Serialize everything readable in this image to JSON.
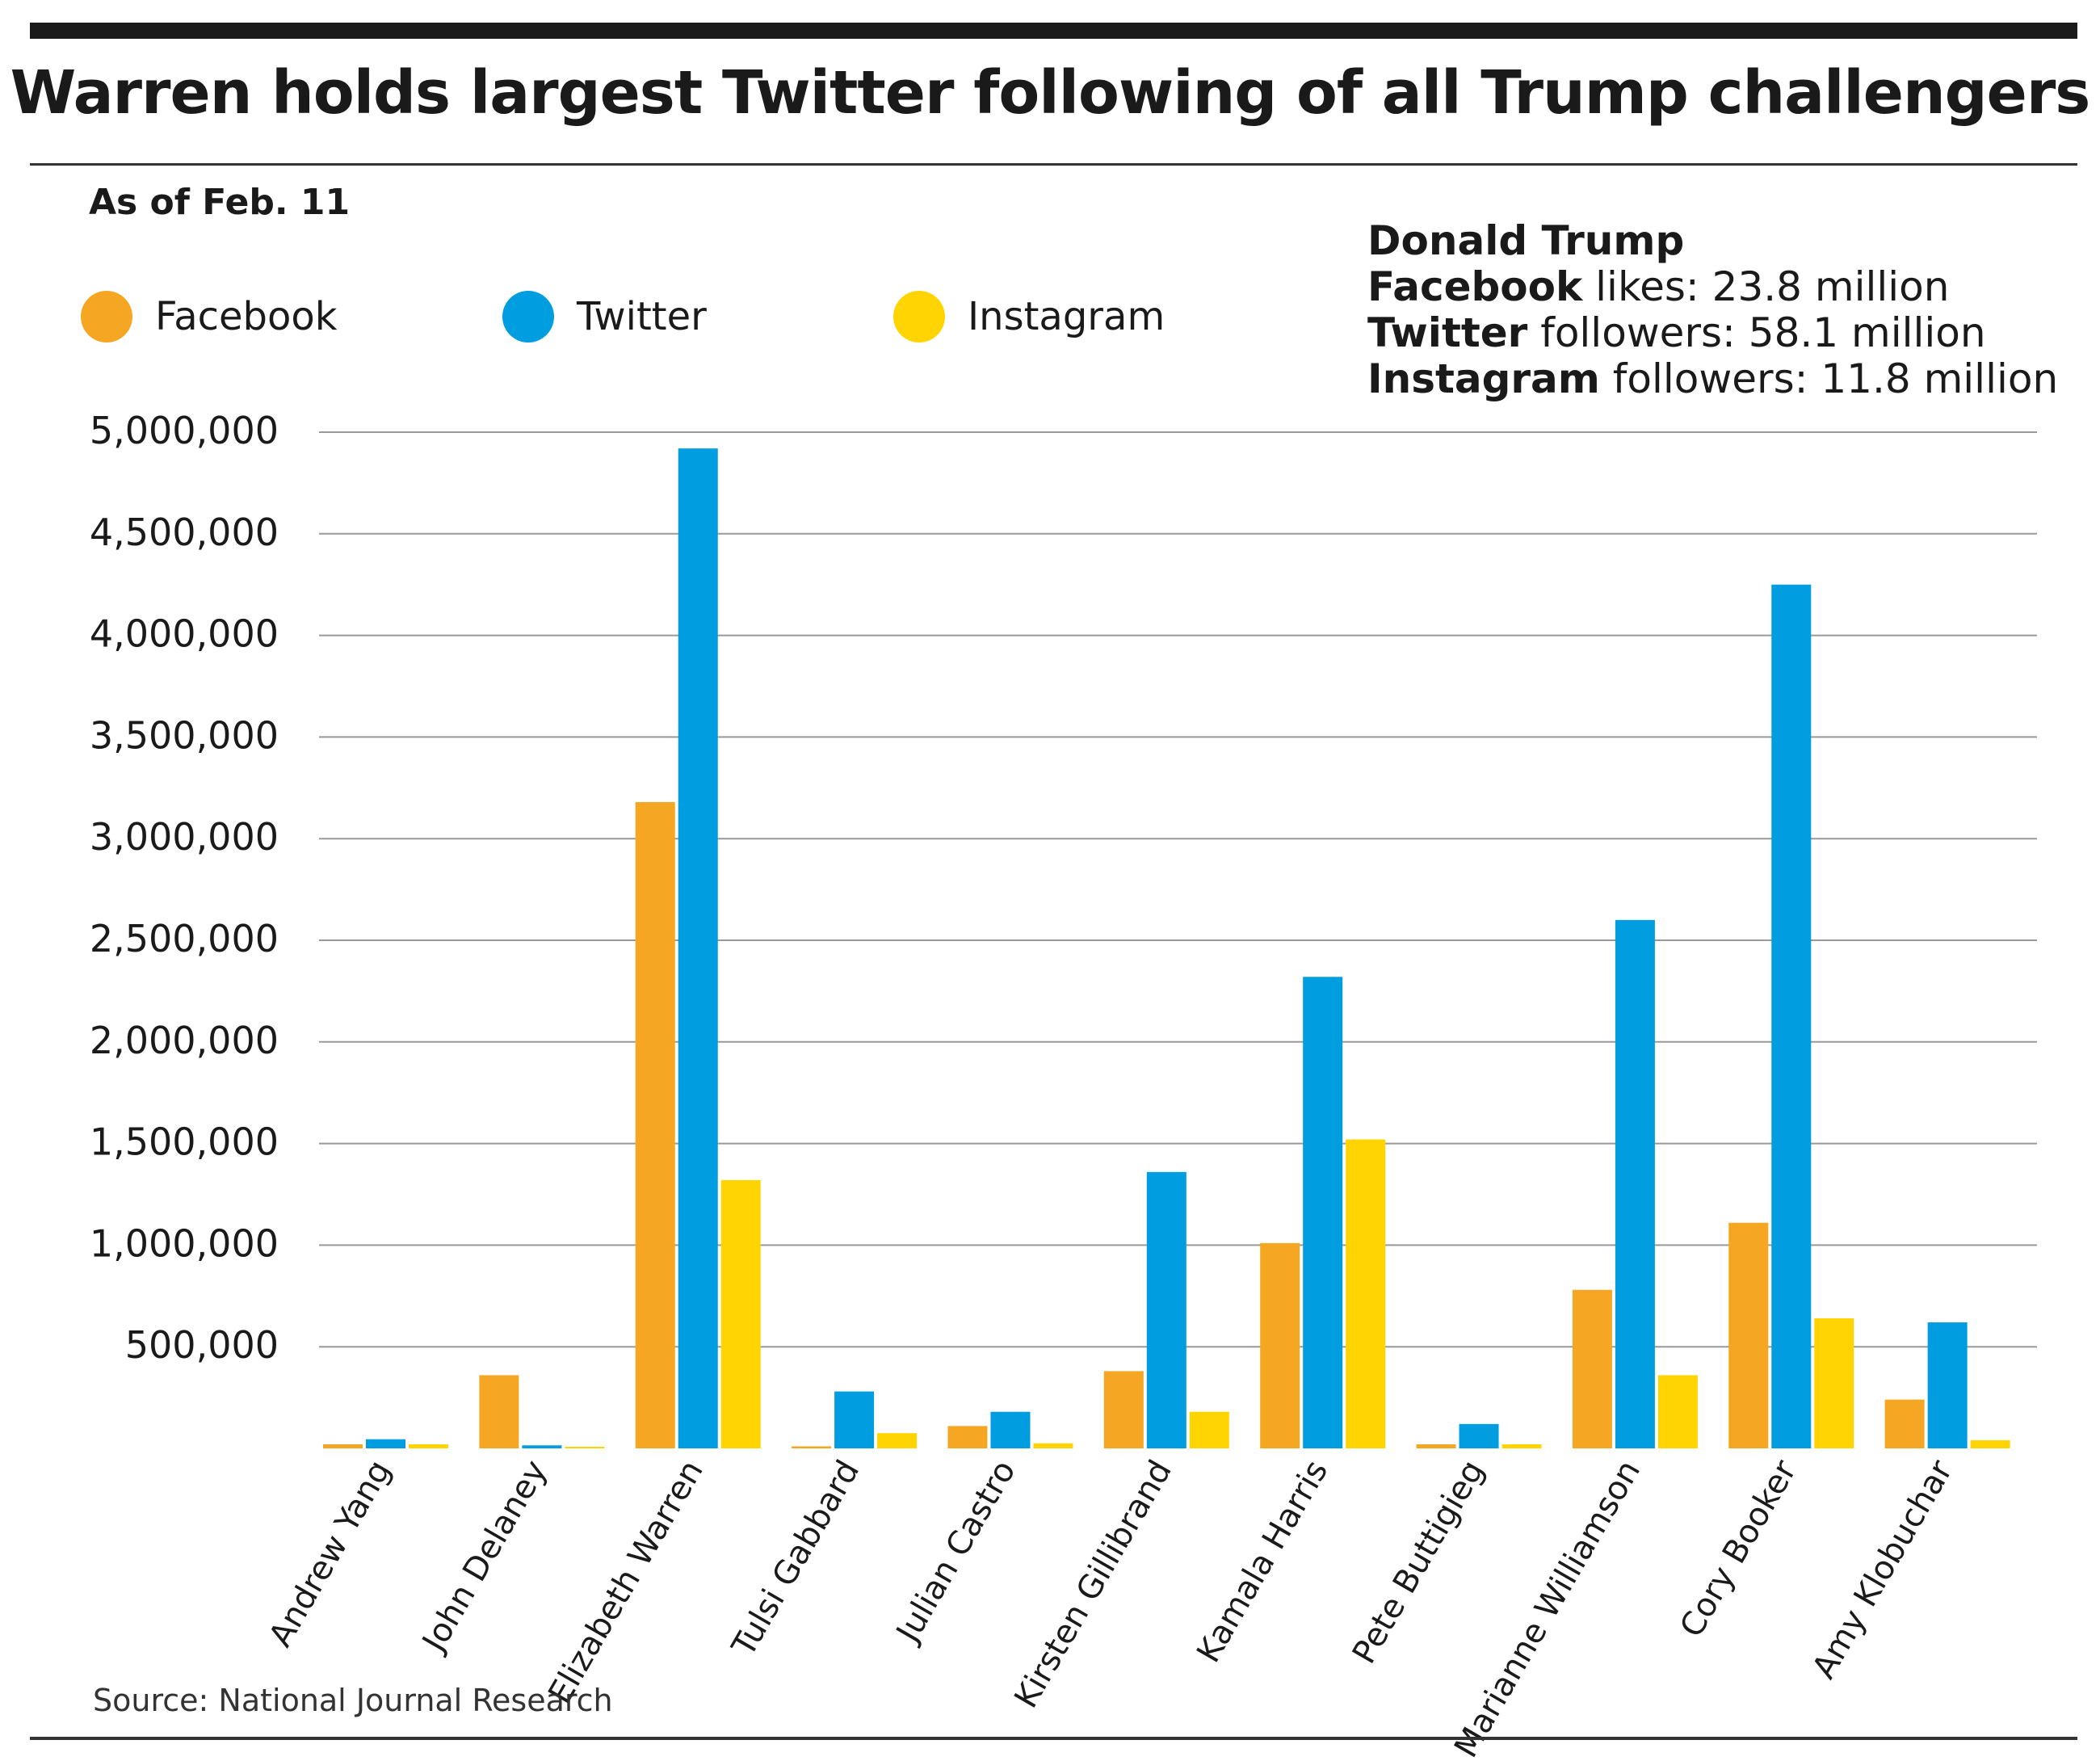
{
  "title": "Warren holds largest Twitter following of all Trump challengers",
  "subtitle": "As of Feb. 11",
  "source": "Source: National Journal Research",
  "trump_box": {
    "heading": "Donald Trump",
    "lines": [
      {
        "bold": "Facebook",
        "rest": " likes: 23.8 million"
      },
      {
        "bold": "Twitter",
        "rest": " followers: 58.1 million"
      },
      {
        "bold": "Instagram",
        "rest": " followers: 11.8 million"
      }
    ]
  },
  "colors": {
    "Facebook": "#f5a623",
    "Twitter": "#009ee0",
    "Instagram": "#ffd400",
    "grid": "#999999"
  },
  "chart_data": {
    "type": "bar",
    "title": "Warren holds largest Twitter following of all Trump challengers",
    "subtitle": "As of Feb. 11",
    "xlabel": "",
    "ylabel": "",
    "ylim": [
      0,
      5000000
    ],
    "yticks": [
      500000,
      1000000,
      1500000,
      2000000,
      2500000,
      3000000,
      3500000,
      4000000,
      4500000,
      5000000
    ],
    "ytick_labels": [
      "500,000",
      "1,000,000",
      "1,500,000",
      "2,000,000",
      "2,500,000",
      "3,000,000",
      "3,500,000",
      "4,000,000",
      "4,500,000",
      "5,000,000"
    ],
    "grid": true,
    "legend": "top-left",
    "categories": [
      "Andrew Yang",
      "John Delaney",
      "Elizabeth Warren",
      "Tulsi Gabbard",
      "Julian Castro",
      "Kirsten Gillibrand",
      "Kamala Harris",
      "Pete Buttigieg",
      "Marianne Williamson",
      "Cory Booker",
      "Amy Klobuchar"
    ],
    "series": [
      {
        "name": "Facebook",
        "values": [
          20000,
          360000,
          3180000,
          10000,
          110000,
          380000,
          1010000,
          20000,
          780000,
          1110000,
          240000
        ]
      },
      {
        "name": "Twitter",
        "values": [
          45000,
          15000,
          4920000,
          280000,
          180000,
          1360000,
          2320000,
          120000,
          2600000,
          4250000,
          620000
        ]
      },
      {
        "name": "Instagram",
        "values": [
          20000,
          5000,
          1320000,
          75000,
          25000,
          180000,
          1520000,
          20000,
          360000,
          640000,
          40000
        ]
      }
    ]
  }
}
